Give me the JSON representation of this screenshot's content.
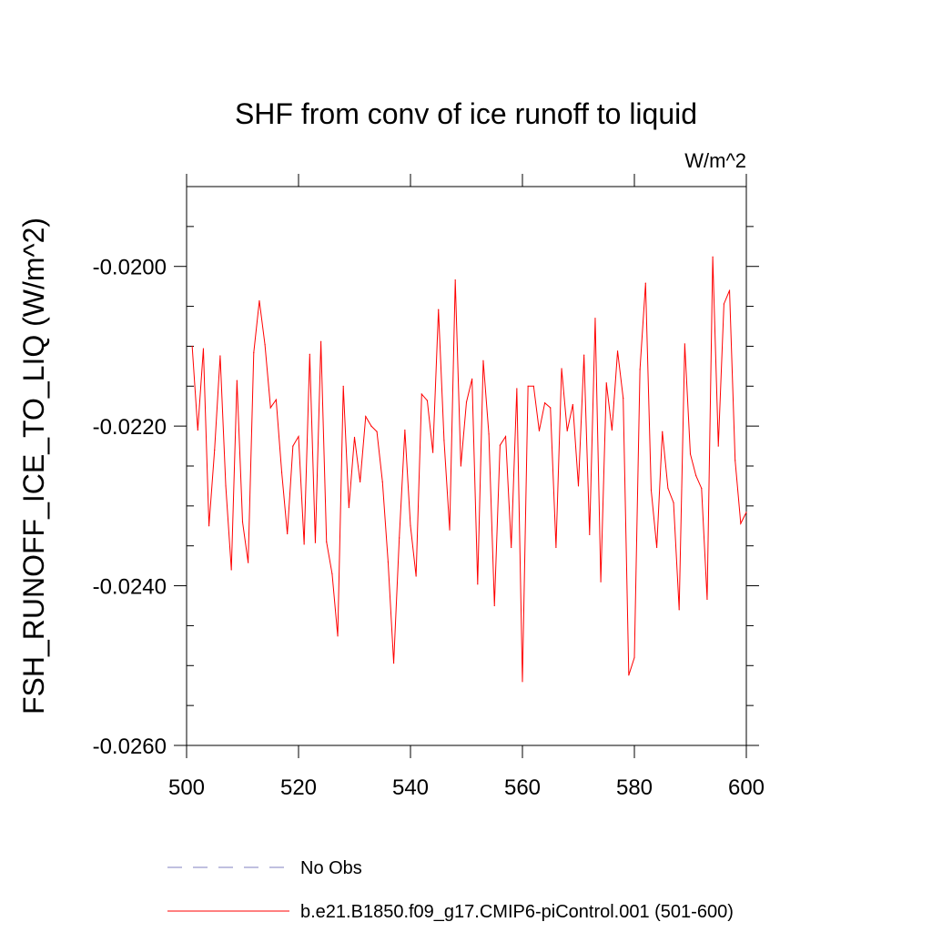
{
  "chart_data": {
    "type": "line",
    "title": "SHF from conv of ice runoff to liquid",
    "units_label": "W/m^2",
    "ylabel": "FSH_RUNOFF_ICE_TO_LIQ  (W/m^2)",
    "xlabel": "",
    "xlim": [
      500,
      600
    ],
    "ylim": [
      -0.026,
      -0.019
    ],
    "x_ticks": [
      500,
      520,
      540,
      560,
      580,
      600
    ],
    "x_tick_labels": [
      "500",
      "520",
      "540",
      "560",
      "580",
      "600"
    ],
    "y_ticks": [
      -0.026,
      -0.024,
      -0.022,
      -0.02
    ],
    "y_tick_labels": [
      "-0.0260",
      "-0.0240",
      "-0.0220",
      "-0.0200"
    ],
    "grid": false,
    "legend_position": "bottom",
    "colors": {
      "model": "#ff0000",
      "obs": "#8080c0"
    },
    "series": [
      {
        "name": "b.e21.B1850.f09_g17.CMIP6-piControl.001 (501-600)",
        "style": "solid",
        "x": [
          501,
          502,
          503,
          504,
          505,
          506,
          507,
          508,
          509,
          510,
          511,
          512,
          513,
          514,
          515,
          516,
          517,
          518,
          519,
          520,
          521,
          522,
          523,
          524,
          525,
          526,
          527,
          528,
          529,
          530,
          531,
          532,
          533,
          534,
          535,
          536,
          537,
          538,
          539,
          540,
          541,
          542,
          543,
          544,
          545,
          546,
          547,
          548,
          549,
          550,
          551,
          552,
          553,
          554,
          555,
          556,
          557,
          558,
          559,
          560,
          561,
          562,
          563,
          564,
          565,
          566,
          567,
          568,
          569,
          570,
          571,
          572,
          573,
          574,
          575,
          576,
          577,
          578,
          579,
          580,
          581,
          582,
          583,
          584,
          585,
          586,
          587,
          588,
          589,
          590,
          591,
          592,
          593,
          594,
          595,
          596,
          597,
          598,
          599,
          600
        ],
        "values": [
          -0.021,
          -0.02205,
          -0.02103,
          -0.02325,
          -0.0223,
          -0.02112,
          -0.02275,
          -0.0238,
          -0.02143,
          -0.0232,
          -0.02371,
          -0.02108,
          -0.02043,
          -0.02098,
          -0.02177,
          -0.02167,
          -0.02258,
          -0.02335,
          -0.02225,
          -0.02213,
          -0.02348,
          -0.0211,
          -0.02346,
          -0.02094,
          -0.02345,
          -0.02385,
          -0.02463,
          -0.0215,
          -0.02302,
          -0.02214,
          -0.0227,
          -0.02188,
          -0.022,
          -0.02207,
          -0.0227,
          -0.0237,
          -0.02497,
          -0.0234,
          -0.02205,
          -0.02325,
          -0.02388,
          -0.0216,
          -0.02168,
          -0.02233,
          -0.02054,
          -0.02218,
          -0.0233,
          -0.02017,
          -0.0225,
          -0.0217,
          -0.02141,
          -0.02398,
          -0.02118,
          -0.0221,
          -0.02425,
          -0.02224,
          -0.02213,
          -0.02352,
          -0.02153,
          -0.0252,
          -0.0215,
          -0.0215,
          -0.02206,
          -0.02171,
          -0.02177,
          -0.02352,
          -0.02128,
          -0.02206,
          -0.02173,
          -0.02275,
          -0.02111,
          -0.02336,
          -0.02065,
          -0.02395,
          -0.02146,
          -0.02205,
          -0.02106,
          -0.02165,
          -0.02512,
          -0.0249,
          -0.02129,
          -0.02021,
          -0.0228,
          -0.02352,
          -0.02207,
          -0.02278,
          -0.02296,
          -0.0243,
          -0.02097,
          -0.02235,
          -0.02262,
          -0.02278,
          -0.02417,
          -0.01988,
          -0.02225,
          -0.02047,
          -0.0203,
          -0.02243,
          -0.02322,
          -0.02308
        ]
      },
      {
        "name": "No Obs",
        "style": "dashed",
        "x": [],
        "values": []
      }
    ]
  }
}
